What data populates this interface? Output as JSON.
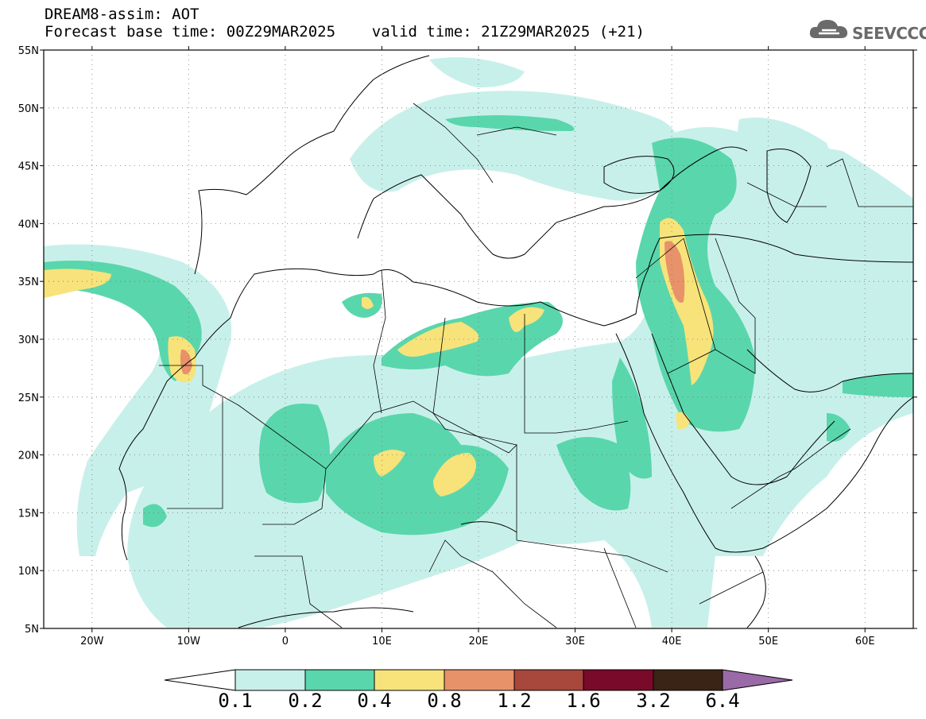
{
  "header": {
    "title_line1": "DREAM8-assim: AOT",
    "title_line2": "Forecast base time: 00Z29MAR2025    valid time: 21Z29MAR2025 (+21)"
  },
  "logo": {
    "text": "SEEVCCC",
    "icon": "cloud-icon"
  },
  "map": {
    "lon_range": [
      -25,
      65
    ],
    "lat_range": [
      5,
      55
    ],
    "lat_ticks": [
      {
        "value": 5,
        "label": "5N"
      },
      {
        "value": 10,
        "label": "10N"
      },
      {
        "value": 15,
        "label": "15N"
      },
      {
        "value": 20,
        "label": "20N"
      },
      {
        "value": 25,
        "label": "25N"
      },
      {
        "value": 30,
        "label": "30N"
      },
      {
        "value": 35,
        "label": "35N"
      },
      {
        "value": 40,
        "label": "40N"
      },
      {
        "value": 45,
        "label": "45N"
      },
      {
        "value": 50,
        "label": "50N"
      },
      {
        "value": 55,
        "label": "55N"
      }
    ],
    "lon_ticks": [
      {
        "value": -20,
        "label": "20W"
      },
      {
        "value": -10,
        "label": "10W"
      },
      {
        "value": 0,
        "label": "0"
      },
      {
        "value": 10,
        "label": "10E"
      },
      {
        "value": 20,
        "label": "20E"
      },
      {
        "value": 30,
        "label": "30E"
      },
      {
        "value": 40,
        "label": "40E"
      },
      {
        "value": 50,
        "label": "50E"
      },
      {
        "value": 60,
        "label": "60E"
      }
    ],
    "grid": "dotted"
  },
  "colorbar": {
    "labels": [
      "0.1",
      "0.2",
      "0.4",
      "0.8",
      "1.2",
      "1.6",
      "3.2",
      "6.4"
    ],
    "colors": [
      "#ffffff",
      "#c8f0ea",
      "#5ad6ac",
      "#f7e37a",
      "#e8926a",
      "#a8473b",
      "#7a0a2a",
      "#3a2415",
      "#9a6aa8"
    ]
  },
  "colors": {
    "aot_02": "#c8f0ea",
    "aot_04": "#5ad6ac",
    "aot_08": "#f7e37a",
    "aot_12": "#e8926a",
    "aot_16": "#a8473b"
  }
}
